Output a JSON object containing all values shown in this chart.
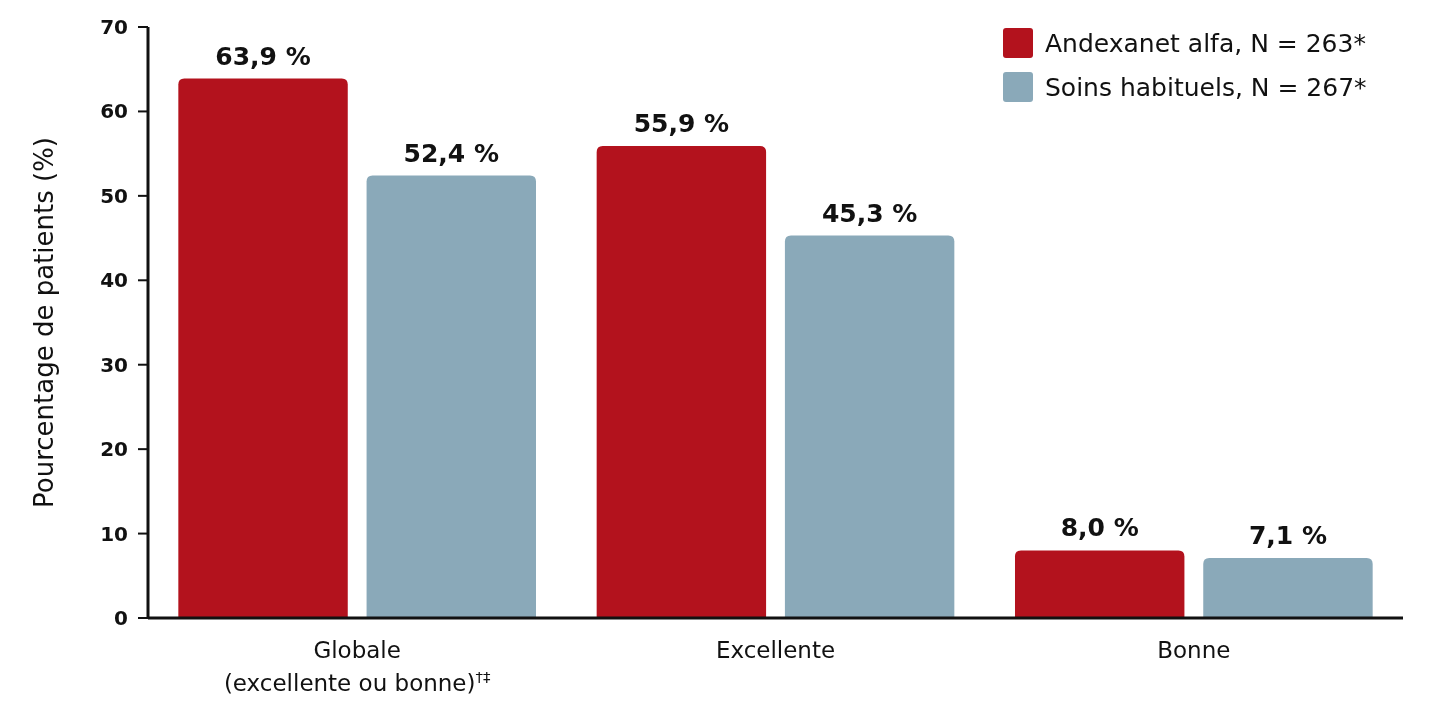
{
  "chart_data": {
    "type": "bar",
    "ylabel": "Pourcentage de patients (%)",
    "categories": [
      "Globale\n(excellente ou bonne)$^{†‡}$",
      "Excellente",
      "Bonne"
    ],
    "series": [
      {
        "name": "Andexanet alfa, N = 263*",
        "color": "#b3121d",
        "values": [
          63.9,
          55.9,
          8.0
        ],
        "value_labels": [
          "63,9 %",
          "55,9 %",
          "8,0 %"
        ]
      },
      {
        "name": "Soins habituels, N = 267*",
        "color": "#8aa9b9",
        "values": [
          52.4,
          45.3,
          7.1
        ],
        "value_labels": [
          "52,4 %",
          "45,3 %",
          "7,1 %"
        ]
      }
    ],
    "ylim": [
      0,
      70
    ],
    "yticks": [
      0,
      10,
      20,
      30,
      40,
      50,
      60,
      70
    ],
    "grid": false,
    "legend": "top right"
  }
}
